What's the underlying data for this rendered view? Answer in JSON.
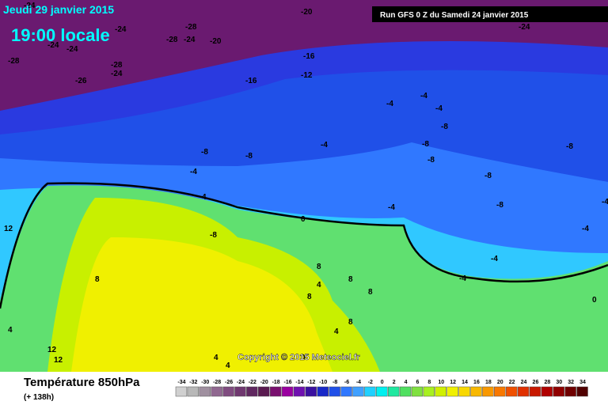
{
  "header": {
    "date": "Jeudi 29 janvier 2015",
    "time": "19:00 locale",
    "run": "Run GFS 0 Z du Samedi 24 janvier 2015",
    "copyright": "Copyright © 2015 Meteociel.fr"
  },
  "footer": {
    "title": "Température 850hPa",
    "lead": "(+ 138h)"
  },
  "legend": {
    "ticks": [
      -34,
      -32,
      -30,
      -28,
      -26,
      -24,
      -22,
      -20,
      -18,
      -16,
      -14,
      -12,
      -10,
      -8,
      -6,
      -4,
      -2,
      0,
      2,
      4,
      6,
      8,
      10,
      12,
      14,
      16,
      18,
      20,
      22,
      24,
      26,
      28,
      30,
      32,
      34
    ],
    "colors": [
      "#d0d0d0",
      "#b8b8b8",
      "#a090a0",
      "#906890",
      "#804c80",
      "#703870",
      "#602860",
      "#5a1a50",
      "#7a1070",
      "#9a00a0",
      "#7010b0",
      "#3a10a0",
      "#1828c8",
      "#2050e8",
      "#3078ff",
      "#40a0ff",
      "#20d0ff",
      "#00f0f0",
      "#20e8a0",
      "#50e060",
      "#80e040",
      "#a8f020",
      "#d0f000",
      "#f0f000",
      "#f8d800",
      "#f8b800",
      "#f89800",
      "#f87800",
      "#f05000",
      "#e03000",
      "#c81800",
      "#b00000",
      "#900000",
      "#700000",
      "#500000"
    ]
  },
  "map_labels": [
    "-24",
    "-20",
    "-24",
    "-24",
    "-28",
    "-24",
    "-20",
    "-24",
    "-28",
    "-28",
    "-24",
    "-28",
    "-26",
    "-16",
    "-12",
    "-16",
    "-24",
    "-4",
    "-4",
    "-4",
    "-8",
    "-8",
    "-8",
    "-8",
    "-4",
    "-8",
    "-4",
    "-8",
    "-8",
    "-8",
    "-4",
    "-4",
    "-4",
    "-4",
    "0",
    "-4",
    "0",
    "4",
    "-8",
    "8",
    "8",
    "4",
    "8",
    "8",
    "8",
    "4",
    "12",
    "12",
    "4",
    "4",
    "4",
    "0",
    "8",
    "12"
  ]
}
